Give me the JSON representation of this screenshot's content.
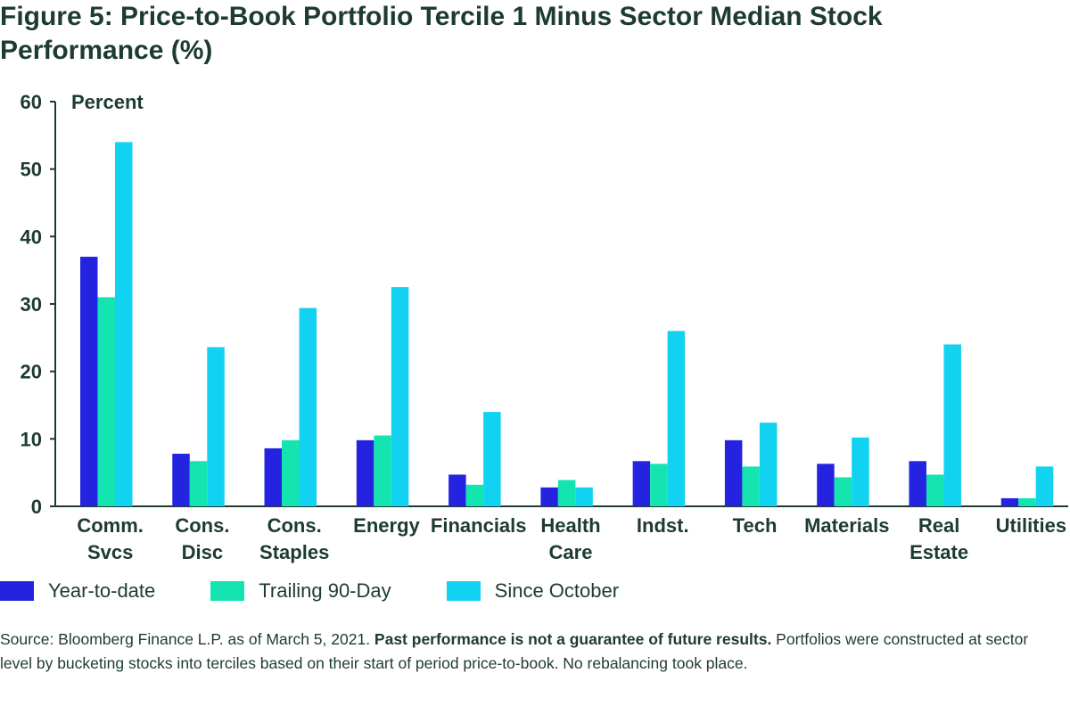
{
  "title": "Figure 5: Price-to-Book Portfolio Tercile 1 Minus Sector Median Stock Performance (%)",
  "source": {
    "prefix": "Source: Bloomberg Finance L.P. as of March 5, 2021. ",
    "bold": "Past performance is not a guarantee of future results.",
    "suffix": " Portfolios were constructed at sector level by bucketing stocks into terciles based on their start of period price-to-book.  No rebalancing took place."
  },
  "colors": {
    "year_to_date": "#2424e0",
    "trailing_90_day": "#14e4b0",
    "since_october": "#12d2f2",
    "axis": "#1d3a33",
    "text": "#1d3a33"
  },
  "chart_data": {
    "type": "bar",
    "title": "Figure 5: Price-to-Book Portfolio Tercile 1 Minus Sector Median Stock Performance (%)",
    "ylabel": "Percent",
    "xlabel": "",
    "ylim": [
      0,
      60
    ],
    "yticks": [
      0,
      10,
      20,
      30,
      40,
      50,
      60
    ],
    "grid": false,
    "legend_position": "bottom-left",
    "categories": [
      [
        "Comm.",
        "Svcs"
      ],
      [
        "Cons.",
        "Disc"
      ],
      [
        "Cons.",
        "Staples"
      ],
      [
        "Energy"
      ],
      [
        "Financials"
      ],
      [
        "Health",
        "Care"
      ],
      [
        "Indst."
      ],
      [
        "Tech"
      ],
      [
        "Materials"
      ],
      [
        "Real",
        "Estate"
      ],
      [
        "Utilities"
      ]
    ],
    "series": [
      {
        "name": "Year-to-date",
        "color": "#2424e0",
        "values": [
          37.0,
          7.8,
          8.6,
          9.8,
          4.7,
          2.8,
          6.7,
          9.8,
          6.3,
          6.7,
          1.2
        ]
      },
      {
        "name": "Trailing 90-Day",
        "color": "#14e4b0",
        "values": [
          31.0,
          6.7,
          9.8,
          10.5,
          3.2,
          3.9,
          6.3,
          5.9,
          4.3,
          4.7,
          1.2
        ]
      },
      {
        "name": "Since October",
        "color": "#12d2f2",
        "values": [
          54.0,
          23.6,
          29.4,
          32.5,
          14.0,
          2.8,
          26.0,
          12.4,
          10.2,
          24.0,
          5.9
        ]
      }
    ]
  }
}
